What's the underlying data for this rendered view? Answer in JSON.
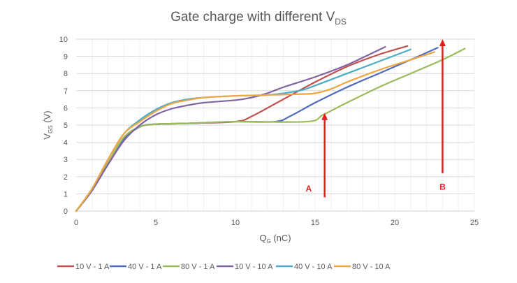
{
  "chart_data": {
    "type": "line",
    "title": {
      "main": "Gate charge with different V",
      "sub": "DS"
    },
    "xlabel": {
      "main": "Q",
      "sub": "G",
      "rest": " (nC)"
    },
    "ylabel": {
      "main": "V",
      "sub": "GS",
      "rest": " (V)"
    },
    "xlim": [
      0,
      25
    ],
    "ylim": [
      0,
      10
    ],
    "xticks": [
      0,
      5,
      10,
      15,
      20,
      25
    ],
    "yticks": [
      0,
      1,
      2,
      3,
      4,
      5,
      6,
      7,
      8,
      9,
      10
    ],
    "grid": true,
    "legend_position": "bottom",
    "series": [
      {
        "name": "10 V - 1 A",
        "color": "#c0504d",
        "x": [
          0,
          1,
          2,
          3,
          4,
          5,
          7,
          10,
          11,
          13,
          15,
          17,
          19,
          20.8
        ],
        "y": [
          0,
          1.2,
          2.8,
          4.2,
          4.9,
          5.05,
          5.1,
          5.2,
          5.5,
          6.5,
          7.5,
          8.4,
          9.1,
          9.6
        ]
      },
      {
        "name": "40 V - 1 A",
        "color": "#4f6bbd",
        "x": [
          0,
          1,
          2,
          3,
          4,
          5,
          7,
          10,
          12.5,
          13.5,
          15,
          17,
          19,
          21,
          22.7
        ],
        "y": [
          0,
          1.2,
          2.8,
          4.2,
          4.9,
          5.05,
          5.1,
          5.2,
          5.2,
          5.55,
          6.3,
          7.2,
          8.0,
          8.8,
          9.5
        ]
      },
      {
        "name": "80 V - 1 A",
        "color": "#9bbb59",
        "x": [
          0,
          1,
          2,
          3,
          4,
          5,
          7,
          10,
          14.5,
          15.5,
          17,
          19,
          21,
          23,
          24.4
        ],
        "y": [
          0,
          1.2,
          2.8,
          4.3,
          4.9,
          5.05,
          5.1,
          5.2,
          5.2,
          5.6,
          6.3,
          7.2,
          8.0,
          8.8,
          9.45
        ]
      },
      {
        "name": "10 V - 10 A",
        "color": "#8064a2",
        "x": [
          0,
          1,
          2,
          3,
          4,
          5,
          6,
          7,
          8,
          10,
          11,
          12,
          13,
          15,
          17,
          19.4
        ],
        "y": [
          0,
          1.2,
          2.7,
          4.1,
          5.0,
          5.6,
          5.95,
          6.15,
          6.3,
          6.45,
          6.6,
          6.85,
          7.2,
          7.8,
          8.5,
          9.55
        ]
      },
      {
        "name": "40 V - 10 A",
        "color": "#4bacc6",
        "x": [
          0,
          1,
          2,
          3,
          4,
          5,
          6,
          7,
          8,
          10,
          12,
          14,
          15,
          17,
          19,
          21
        ],
        "y": [
          0,
          1.3,
          3.0,
          4.5,
          5.3,
          5.9,
          6.3,
          6.5,
          6.6,
          6.7,
          6.75,
          7.0,
          7.3,
          8.0,
          8.7,
          9.4
        ]
      },
      {
        "name": "80 V - 10 A",
        "color": "#f0a540",
        "x": [
          0,
          1,
          2,
          3,
          4,
          5,
          6,
          7,
          8,
          10,
          12,
          14,
          15,
          16,
          17,
          19,
          21,
          22.5
        ],
        "y": [
          0,
          1.3,
          3.0,
          4.5,
          5.2,
          5.8,
          6.25,
          6.45,
          6.6,
          6.7,
          6.75,
          6.8,
          6.85,
          7.1,
          7.5,
          8.2,
          8.8,
          9.25
        ]
      }
    ],
    "annotations": [
      {
        "label": "A",
        "x": 15.6,
        "y_from": 0.8,
        "y_to": 5.7,
        "label_x": 14.6,
        "label_y": 1.3,
        "color": "#e02020"
      },
      {
        "label": "B",
        "x": 23.0,
        "y_from": 2.2,
        "y_to": 10.0,
        "label_x": 23.0,
        "label_y": 1.4,
        "color": "#e02020"
      }
    ]
  }
}
